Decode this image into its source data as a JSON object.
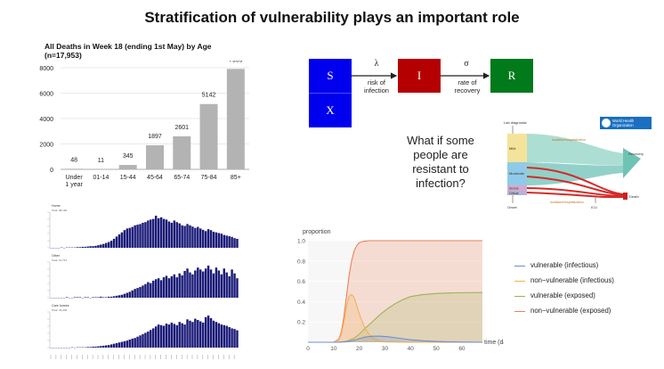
{
  "slide": {
    "title": "Stratification of vulnerability plays an important role"
  },
  "bar_chart": {
    "title_line1": "All Deaths in Week 18 (ending 1st May)  by Age",
    "title_line2": "(n=17,953)"
  },
  "sir": {
    "s": "S",
    "i": "I",
    "r": "R",
    "x": "X",
    "lambda": "λ",
    "sigma": "σ",
    "risk_line1": "risk of",
    "risk_line2": "infection",
    "rate_line1": "rate of",
    "rate_line2": "recovery",
    "colors": {
      "s": "#0000ee",
      "i": "#b50000",
      "r": "#007a1a",
      "x": "#0000ee"
    }
  },
  "question": {
    "text": "What if some people are resistant to infection?"
  },
  "who": {
    "org_line1": "World Health",
    "org_line2": "Organization",
    "lab": "Lab diagnostic",
    "mild": "Mild",
    "moderate": "Moderate",
    "severe": "Severe",
    "critical": "Critical",
    "recovery": "Recovery",
    "death": "Death",
    "onset": "Onset",
    "icu": "ICU",
    "isolation_top": "Isolation/Hospitalization",
    "isolation_bottom": "Isolation/Hospitalization"
  },
  "weekly_panels": {
    "panels": [
      {
        "label": "Home",
        "sub": "Total: 38,184"
      },
      {
        "label": "Other",
        "sub": "Total: 10,712"
      },
      {
        "label": "Care homes",
        "sub": "Total: 33,045"
      }
    ]
  },
  "line_legend": [
    {
      "label": "vulnerable (infectious)",
      "color": "#6b8fcf"
    },
    {
      "label": "non−vulnerable (infectious)",
      "color": "#f2b252"
    },
    {
      "label": "vulnerable (exposed)",
      "color": "#9ab457"
    },
    {
      "label": "non−vulnerable (exposed)",
      "color": "#f07f55"
    }
  ],
  "chart_data": [
    {
      "type": "bar",
      "title": "All Deaths in Week 18 (ending 1st May)  by Age (n=17,953)",
      "categories": [
        "Under 1 year",
        "01-14",
        "15-44",
        "45-64",
        "65-74",
        "75-84",
        "85+"
      ],
      "values": [
        48,
        11,
        345,
        1897,
        2601,
        5142,
        7909
      ],
      "ylim": [
        0,
        8000
      ],
      "yticks": [
        0,
        2000,
        4000,
        6000,
        8000
      ],
      "grid": true,
      "bar_color": "#b3b3b3"
    },
    {
      "type": "line",
      "xlabel": "time (day)",
      "ylabel": "proportion",
      "xlim": [
        0,
        68
      ],
      "ylim": [
        0,
        1.0
      ],
      "xticks": [
        0,
        10,
        20,
        30,
        40,
        50,
        60
      ],
      "yticks": [
        0.2,
        0.4,
        0.6,
        0.8,
        1.0
      ],
      "legend": "right",
      "series": [
        {
          "name": "vulnerable (infectious)",
          "color": "#6b8fcf",
          "x": [
            0,
            12,
            15,
            18,
            20,
            22,
            25,
            28,
            31,
            34,
            37,
            40,
            45,
            50,
            55,
            60,
            68
          ],
          "y": [
            0,
            0,
            0.005,
            0.02,
            0.035,
            0.05,
            0.06,
            0.06,
            0.055,
            0.045,
            0.035,
            0.025,
            0.015,
            0.008,
            0.004,
            0.002,
            0
          ]
        },
        {
          "name": "non−vulnerable (infectious)",
          "color": "#f2b252",
          "x": [
            0,
            10,
            12,
            13,
            14,
            15,
            16,
            17,
            18,
            19,
            20,
            22,
            24,
            26,
            28,
            30,
            35,
            40,
            68
          ],
          "y": [
            0,
            0,
            0.02,
            0.08,
            0.2,
            0.35,
            0.45,
            0.47,
            0.44,
            0.36,
            0.28,
            0.15,
            0.07,
            0.03,
            0.012,
            0.005,
            0.001,
            0,
            0
          ]
        },
        {
          "name": "vulnerable (exposed)",
          "color": "#9ab457",
          "x": [
            0,
            12,
            15,
            18,
            20,
            22,
            25,
            28,
            31,
            34,
            37,
            40,
            45,
            50,
            55,
            60,
            68
          ],
          "y": [
            0,
            0,
            0.01,
            0.04,
            0.08,
            0.13,
            0.2,
            0.27,
            0.33,
            0.38,
            0.42,
            0.45,
            0.47,
            0.48,
            0.485,
            0.488,
            0.49
          ]
        },
        {
          "name": "non−vulnerable (exposed)",
          "color": "#f07f55",
          "x": [
            0,
            10,
            12,
            13,
            14,
            15,
            16,
            17,
            18,
            19,
            20,
            21,
            22,
            24,
            68
          ],
          "y": [
            0,
            0,
            0.03,
            0.1,
            0.25,
            0.45,
            0.65,
            0.8,
            0.9,
            0.95,
            0.98,
            0.99,
            0.995,
            1.0,
            1.0
          ]
        }
      ]
    },
    {
      "type": "bar",
      "series": [
        {
          "name": "Home",
          "values": [
            0,
            0,
            0,
            0,
            1,
            0,
            1,
            1,
            1,
            1,
            2,
            2,
            3,
            3,
            4,
            5,
            5,
            6,
            8,
            10,
            12,
            15,
            18,
            22,
            28,
            35,
            42,
            48,
            55,
            60,
            62,
            65,
            70,
            72,
            74,
            78,
            80,
            85,
            88,
            90,
            100,
            92,
            95,
            90,
            88,
            82,
            78,
            85,
            80,
            76,
            70,
            68,
            74,
            70,
            66,
            62,
            65,
            60,
            56,
            52,
            58,
            55,
            50,
            48,
            46,
            44,
            40,
            38,
            36,
            34,
            30,
            28
          ]
        },
        {
          "name": "Other",
          "values": [
            0,
            0,
            0,
            0,
            0,
            0,
            1,
            0,
            0,
            1,
            1,
            1,
            0,
            1,
            1,
            0,
            1,
            1,
            1,
            2,
            1,
            1,
            2,
            2,
            3,
            4,
            5,
            6,
            8,
            10,
            12,
            15,
            18,
            20,
            22,
            25,
            28,
            32,
            30,
            35,
            38,
            40,
            36,
            42,
            45,
            40,
            44,
            48,
            42,
            50,
            46,
            55,
            60,
            52,
            48,
            56,
            62,
            58,
            54,
            60,
            66,
            58,
            50,
            62,
            56,
            48,
            60,
            52,
            44,
            58,
            50,
            40
          ]
        },
        {
          "name": "Care homes",
          "values": [
            0,
            0,
            0,
            0,
            0,
            0,
            0,
            0,
            1,
            0,
            1,
            1,
            1,
            1,
            2,
            2,
            3,
            3,
            4,
            5,
            6,
            7,
            8,
            10,
            12,
            14,
            16,
            18,
            20,
            22,
            25,
            28,
            30,
            34,
            38,
            42,
            46,
            50,
            55,
            60,
            66,
            72,
            70,
            68,
            75,
            72,
            78,
            74,
            70,
            80,
            76,
            72,
            88,
            84,
            80,
            90,
            86,
            82,
            78,
            95,
            100,
            92,
            84,
            80,
            76,
            72,
            70,
            68,
            64,
            60,
            58,
            54
          ]
        }
      ]
    }
  ]
}
